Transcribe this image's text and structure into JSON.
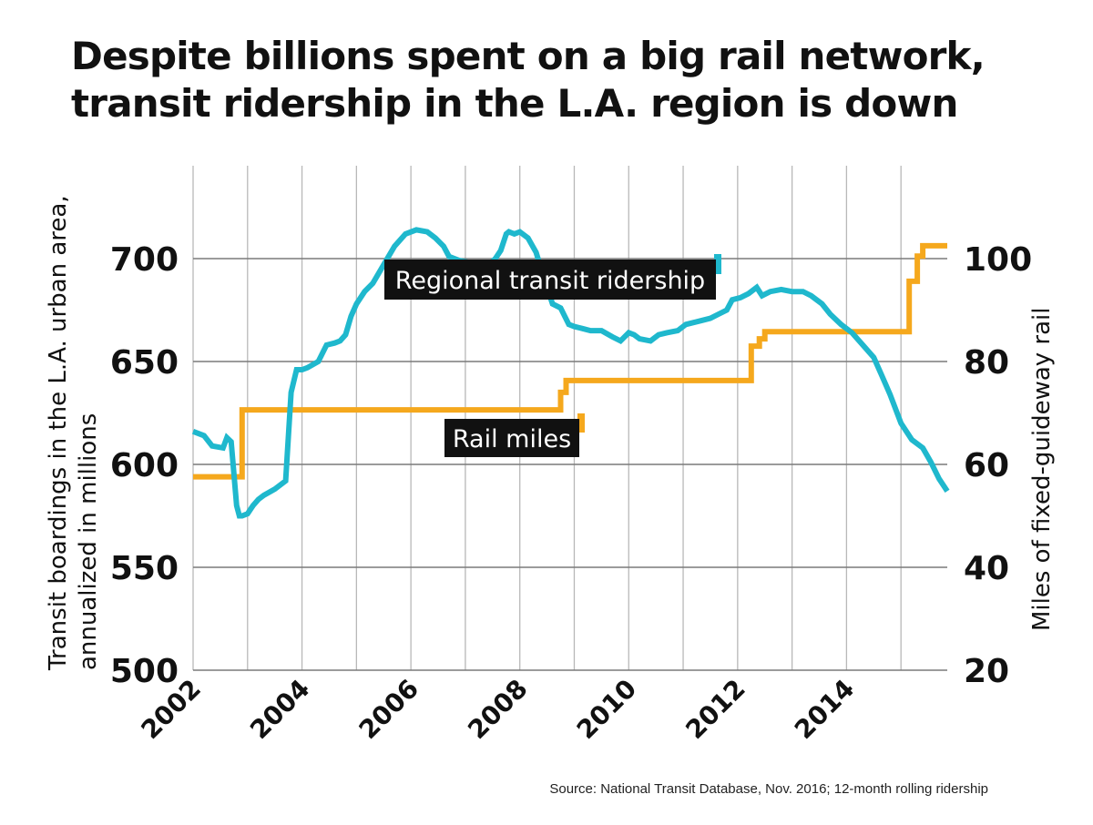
{
  "header": {
    "title_line1": "Despite billions spent on a big rail network,",
    "title_line2": "transit ridership in the L.A. region is down"
  },
  "footer": {
    "source": "Source: National Transit Database, Nov. 2016; 12-month rolling ridership"
  },
  "chart_data": {
    "type": "line",
    "x_ticks": [
      "2002",
      "2004",
      "2006",
      "2008",
      "2010",
      "2012",
      "2014"
    ],
    "xlim": [
      2002,
      2015.85
    ],
    "y_left": {
      "label_line1": "Transit boardings in the L.A. urban area,",
      "label_line2": "annualized in millions",
      "ticks": [
        "500",
        "550",
        "600",
        "650",
        "700"
      ],
      "lim": [
        500,
        700
      ]
    },
    "y_right": {
      "label": "Miles of fixed-guideway rail",
      "ticks": [
        "20",
        "40",
        "60",
        "80",
        "100"
      ],
      "lim": [
        20,
        100
      ]
    },
    "grid": true,
    "series": [
      {
        "name": "Regional transit ridership",
        "axis": "left",
        "color": "#1fb8cd",
        "x": [
          2002.0,
          2002.2,
          2002.35,
          2002.55,
          2002.62,
          2002.7,
          2002.8,
          2002.85,
          2002.9,
          2003.0,
          2003.1,
          2003.2,
          2003.3,
          2003.5,
          2003.7,
          2003.8,
          2003.9,
          2004.0,
          2004.1,
          2004.3,
          2004.45,
          2004.6,
          2004.7,
          2004.8,
          2004.9,
          2005.0,
          2005.15,
          2005.3,
          2005.5,
          2005.7,
          2005.9,
          2006.1,
          2006.3,
          2006.45,
          2006.6,
          2006.7,
          2006.8,
          2006.9,
          2007.1,
          2007.25,
          2007.4,
          2007.55,
          2007.65,
          2007.75,
          2007.8,
          2007.9,
          2008.0,
          2008.15,
          2008.3,
          2008.45,
          2008.6,
          2008.75,
          2008.9,
          2009.0,
          2009.15,
          2009.3,
          2009.5,
          2009.7,
          2009.85,
          2010.0,
          2010.1,
          2010.2,
          2010.4,
          2010.55,
          2010.7,
          2010.9,
          2011.05,
          2011.2,
          2011.35,
          2011.5,
          2011.65,
          2011.8,
          2011.9,
          2012.05,
          2012.2,
          2012.35,
          2012.45,
          2012.6,
          2012.8,
          2013.0,
          2013.2,
          2013.35,
          2013.55,
          2013.7,
          2013.9,
          2014.1,
          2014.3,
          2014.5,
          2014.65,
          2014.8,
          2015.0,
          2015.2,
          2015.4,
          2015.55,
          2015.7,
          2015.85
        ],
        "values": [
          616,
          614,
          609,
          608,
          613,
          611,
          580,
          575,
          575,
          576,
          580,
          583,
          585,
          588,
          592,
          635,
          646,
          646,
          647,
          650,
          658,
          659,
          660,
          663,
          672,
          678,
          684,
          688,
          697,
          706,
          712,
          714,
          713,
          710,
          706,
          701,
          700,
          699,
          698,
          697,
          696,
          700,
          704,
          712,
          713,
          712,
          713,
          710,
          703,
          690,
          678,
          676,
          668,
          667,
          666,
          665,
          665,
          662,
          660,
          664,
          663,
          661,
          660,
          663,
          664,
          665,
          668,
          669,
          670,
          671,
          673,
          675,
          680,
          681,
          683,
          686,
          682,
          684,
          685,
          684,
          684,
          682,
          678,
          673,
          668,
          664,
          658,
          652,
          643,
          634,
          620,
          612,
          608,
          601,
          593,
          587
        ]
      },
      {
        "name": "Rail miles",
        "axis": "right",
        "color": "#f5a81d",
        "x": [
          2002.0,
          2002.9,
          2002.9,
          2008.75,
          2008.75,
          2008.85,
          2008.85,
          2012.25,
          2012.25,
          2012.4,
          2012.4,
          2012.5,
          2012.5,
          2015.15,
          2015.15,
          2015.3,
          2015.3,
          2015.4,
          2015.4,
          2015.85
        ],
        "values": [
          57.6,
          57.6,
          70.6,
          70.6,
          74,
          74,
          76.3,
          76.3,
          83,
          83,
          84.4,
          84.4,
          85.8,
          85.8,
          95.6,
          95.6,
          100.5,
          100.5,
          102.5,
          102.5
        ]
      }
    ],
    "annotations": [
      {
        "text": "Regional transit ridership",
        "series": 0
      },
      {
        "text": "Rail miles",
        "series": 1
      }
    ]
  }
}
